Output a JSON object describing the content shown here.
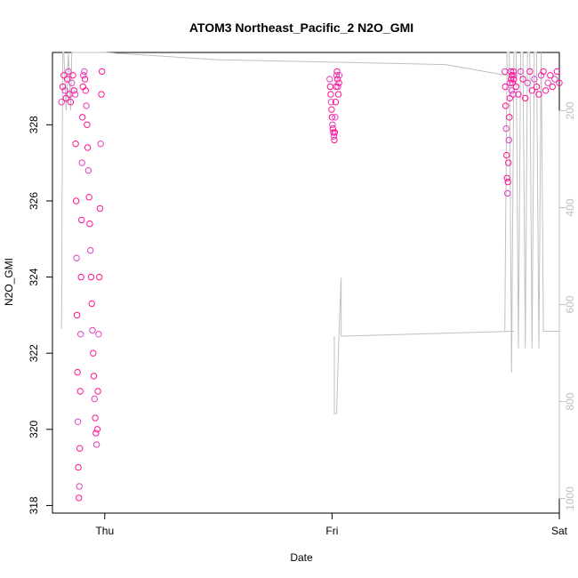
{
  "chart_data": {
    "type": "scatter",
    "title": "ATOM3 Northeast_Pacific_2 N2O_GMI",
    "xlabel": "Date",
    "ylabel": "N2O_GMI",
    "x_axis": {
      "unit": "days",
      "range": [
        -0.23,
        2.0
      ],
      "ticks": [
        {
          "value": 0,
          "label": "Thu"
        },
        {
          "value": 1,
          "label": "Fri"
        },
        {
          "value": 2,
          "label": "Sat"
        }
      ]
    },
    "y_axis": {
      "range": [
        317.8,
        329.9
      ],
      "ticks": [
        318,
        320,
        322,
        324,
        326,
        328
      ]
    },
    "y2_axis": {
      "range": [
        1030,
        80
      ],
      "ticks": [
        200,
        400,
        600,
        800,
        1000
      ],
      "color": "#c0c0c0"
    },
    "colors": {
      "points": "#ff1493",
      "points_alt": "#e040c0",
      "pressure_line": "#c0c0c0"
    },
    "series": [
      {
        "type": "scatter",
        "segments": [
          {
            "x": [
              -0.19,
              -0.185,
              -0.18,
              -0.175,
              -0.17,
              -0.165,
              -0.16,
              -0.155,
              -0.15,
              -0.145,
              -0.14,
              -0.135
            ],
            "y": [
              328.6,
              329.0,
              329.3,
              328.9,
              328.7,
              329.2,
              329.4,
              328.8,
              328.6,
              329.1,
              329.3,
              328.9
            ]
          },
          {
            "x": [
              -0.13,
              -0.128,
              -0.126,
              -0.124,
              -0.122,
              -0.12,
              -0.118,
              -0.116,
              -0.114,
              -0.112,
              -0.11,
              -0.108,
              -0.106,
              -0.104,
              -0.102,
              -0.1,
              -0.098,
              -0.096,
              -0.094
            ],
            "y": [
              328.8,
              327.5,
              326.0,
              324.5,
              323.0,
              321.5,
              320.2,
              319.0,
              318.2,
              318.5,
              319.5,
              321.0,
              322.5,
              324.0,
              325.5,
              327.0,
              328.2,
              329.0,
              329.3
            ]
          },
          {
            "x": [
              -0.09,
              -0.087,
              -0.084,
              -0.081,
              -0.078,
              -0.075,
              -0.072,
              -0.069,
              -0.066,
              -0.063,
              -0.06,
              -0.057,
              -0.054,
              -0.051,
              -0.048,
              -0.045,
              -0.042,
              -0.039,
              -0.036,
              -0.033,
              -0.03,
              -0.027,
              -0.024,
              -0.021,
              -0.018,
              -0.015,
              -0.012
            ],
            "y": [
              329.4,
              329.2,
              328.9,
              328.5,
              328.0,
              327.4,
              326.8,
              326.1,
              325.4,
              324.7,
              324.0,
              323.3,
              322.6,
              322.0,
              321.4,
              320.8,
              320.3,
              319.9,
              319.6,
              320.0,
              321.0,
              322.5,
              324.0,
              325.8,
              327.5,
              328.8,
              329.4
            ]
          },
          {
            "x": [
              0.99,
              0.992,
              0.994,
              0.996,
              0.998,
              1.0,
              1.002,
              1.004,
              1.006,
              1.008,
              1.01,
              1.012,
              1.014,
              1.016,
              1.018,
              1.02,
              1.022,
              1.024,
              1.026,
              1.028,
              1.03,
              1.032
            ],
            "y": [
              329.2,
              329.0,
              328.8,
              328.6,
              328.4,
              328.2,
              328.0,
              327.9,
              327.8,
              327.7,
              327.6,
              327.8,
              328.2,
              328.6,
              329.0,
              329.3,
              329.4,
              329.2,
              329.0,
              328.8,
              329.1,
              329.3
            ]
          },
          {
            "x": [
              1.76,
              1.762,
              1.764,
              1.766,
              1.768,
              1.77,
              1.772,
              1.774,
              1.776,
              1.778,
              1.78,
              1.782,
              1.784,
              1.786,
              1.788,
              1.79,
              1.792,
              1.794,
              1.796,
              1.798,
              1.8
            ],
            "y": [
              329.4,
              329.0,
              328.5,
              327.9,
              327.2,
              326.6,
              326.2,
              326.5,
              327.0,
              327.6,
              328.2,
              328.7,
              329.1,
              329.4,
              329.2,
              328.9,
              329.3,
              329.1,
              328.8,
              329.4,
              329.2
            ]
          },
          {
            "x": [
              1.8,
              1.81,
              1.82,
              1.83,
              1.84,
              1.85,
              1.86,
              1.87,
              1.88,
              1.89,
              1.9,
              1.91,
              1.92,
              1.93,
              1.94,
              1.95,
              1.96,
              1.97,
              1.98,
              1.99,
              2.0
            ],
            "y": [
              329.3,
              329.0,
              328.8,
              329.4,
              329.2,
              328.7,
              329.1,
              329.4,
              328.9,
              329.2,
              329.0,
              328.8,
              329.3,
              329.4,
              328.9,
              329.1,
              329.3,
              329.0,
              329.2,
              329.4,
              329.1
            ]
          }
        ]
      },
      {
        "type": "line",
        "axis": "y2",
        "x": [
          -0.19,
          -0.185,
          -0.18,
          -0.17,
          -0.16,
          -0.15,
          -0.145,
          -0.14,
          -0.13,
          -0.125,
          -0.12,
          -0.11,
          -0.1,
          -0.09,
          -0.085,
          -0.08,
          -0.07,
          -0.06,
          -0.05,
          -0.04,
          -0.03,
          -0.02,
          -0.01,
          0.0,
          0.0,
          0.5,
          1.0,
          1.5,
          1.8
        ],
        "y": [
          650,
          80,
          80,
          200,
          80,
          200,
          80,
          80,
          80,
          80,
          80,
          80,
          80,
          80,
          80,
          80,
          80,
          80,
          80,
          80,
          80,
          80,
          80,
          80,
          80,
          95,
          100,
          105,
          130
        ]
      },
      {
        "type": "line",
        "axis": "y2",
        "x": [
          1.01,
          1.01,
          1.02,
          1.03,
          1.04,
          1.04,
          1.05,
          1.8
        ],
        "y": [
          665,
          825,
          825,
          665,
          545,
          665,
          665,
          655
        ]
      },
      {
        "type": "line",
        "axis": "y2",
        "x": [
          1.76,
          1.77,
          1.78,
          1.79,
          1.8,
          1.81,
          1.82,
          1.83,
          1.84,
          1.85,
          1.86,
          1.87,
          1.88,
          1.89,
          1.9,
          1.91,
          1.92,
          1.93,
          1.94,
          1.95,
          1.96,
          1.97,
          1.98,
          1.99,
          2.0
        ],
        "y": [
          655,
          80,
          80,
          740,
          80,
          80,
          690,
          80,
          80,
          690,
          80,
          80,
          690,
          80,
          80,
          690,
          80,
          655,
          655,
          655,
          655,
          655,
          655,
          655,
          655
        ]
      }
    ]
  }
}
